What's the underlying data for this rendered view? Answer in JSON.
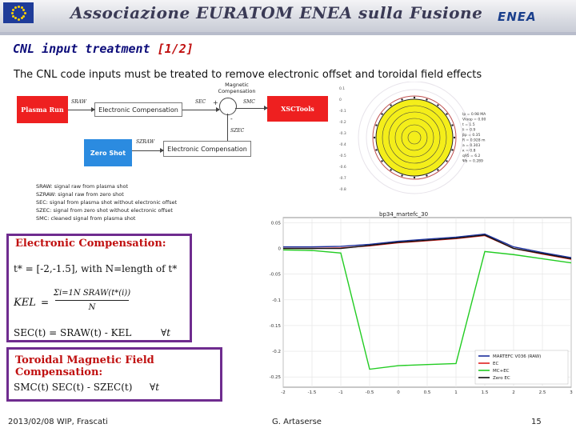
{
  "header": {
    "title": "Associazione EURATOM ENEA sulla Fusione",
    "logo_text": "ENEA"
  },
  "slide": {
    "title_main": "CNL input treatment",
    "title_part": "[1/2]",
    "subtitle": "The CNL code inputs must be treated to remove electronic offset and toroidal field effects"
  },
  "diagram": {
    "plasma_run": "Plasma Run",
    "zero_shot": "Zero Shot",
    "electronic_compensation": "Electronic Compensation",
    "magnetic_compensation": "Magnetic Compensation",
    "xsctools": "XSCTools",
    "plus": "+",
    "minus": "-",
    "s_raw": "SRAW",
    "s_ec": "SEC",
    "s_mc": "SMC",
    "sz_ec": "SZEC",
    "sz_raw": "SZRAW"
  },
  "legend": [
    "SRAW: signal raw from plasma shot",
    "SZRAW: signal raw from zero shot",
    "SEC: signal from plasma shot without electronic offset",
    "SZEC: signal from zero shot without electronic offset",
    "SMC: cleaned signal from plasma shot"
  ],
  "boxes": {
    "ec_title": "Electronic Compensation:",
    "ec_range": "t* = [-2,-1.5], with N=length of t*",
    "kel_label": "KEL",
    "kel_equals": "=",
    "kel_numerator": "Σi=1N SRAW(t*(i))",
    "kel_denominator": "N",
    "sec_eq": "SEC(t) = SRAW(t) - KEL",
    "forall1": "∀t",
    "tmfc_title": "Toroidal Magnetic Field Compensation:",
    "smc_eq": "SMC(t)   SEC(t) - SZEC(t)",
    "forall2": "∀t"
  },
  "footer": {
    "date_event": "2013/02/08   WIP, Frascati",
    "author": "G. Artaserse",
    "page": "15"
  },
  "colors": {
    "accent_red": "#c01010",
    "title_blue": "#0c0c7a",
    "box_purple": "#6f2c8f",
    "block_red": "#ee2020",
    "block_blue": "#2b8be0"
  },
  "chart_data": [
    {
      "type": "line",
      "title": "bp34_martefc_30",
      "x": [
        -2,
        -1.5,
        -1,
        -0.5,
        0,
        0.5,
        1,
        1.5,
        2,
        2.5,
        3
      ],
      "xticks": [
        -2,
        -1.5,
        -1,
        -0.5,
        0,
        0.5,
        1,
        1.5,
        2,
        2.5,
        3
      ],
      "yticks": [
        0.05,
        0,
        -0.05,
        -0.1,
        -0.15,
        -0.2,
        -0.25
      ],
      "ylim": [
        -0.27,
        0.06
      ],
      "xlim": [
        -2,
        3
      ],
      "legend_position": "bottom-right",
      "series": [
        {
          "name": "MARTEFC V036 (RAW)",
          "color": "#1c2f9c",
          "values": [
            0.003,
            0.003,
            0.004,
            0.008,
            0.014,
            0.018,
            0.022,
            0.028,
            0.003,
            -0.008,
            -0.018
          ]
        },
        {
          "name": "EC",
          "color": "#e02020",
          "values": [
            0.0,
            0.0,
            0.001,
            0.005,
            0.011,
            0.015,
            0.019,
            0.025,
            0.0,
            -0.011,
            -0.021
          ]
        },
        {
          "name": "MC+EC",
          "color": "#22cc22",
          "values": [
            -0.003,
            -0.004,
            -0.009,
            -0.235,
            -0.228,
            -0.226,
            -0.224,
            -0.006,
            -0.012,
            -0.02,
            -0.028
          ]
        },
        {
          "name": "Zero EC",
          "color": "#111111",
          "values": [
            0.0,
            0.0,
            0.0,
            0.006,
            0.012,
            0.016,
            0.02,
            0.026,
            0.0,
            -0.01,
            -0.02
          ]
        }
      ]
    },
    {
      "type": "scatter",
      "title": "",
      "yticks": [
        0.1,
        0,
        -0.1,
        -0.2,
        -0.3,
        -0.4,
        -0.5,
        -0.6,
        -0.7,
        -0.8
      ],
      "params": [
        "Ip = 0.98 MA",
        "Vloop = 0.00",
        "t = 1.5",
        "li = 0.9",
        "βp = 0.35",
        "R = 0.928 m",
        "a = 0.303",
        "κ = 0.8",
        "q95 = 6.2",
        "Ψb = 0.289"
      ]
    }
  ]
}
